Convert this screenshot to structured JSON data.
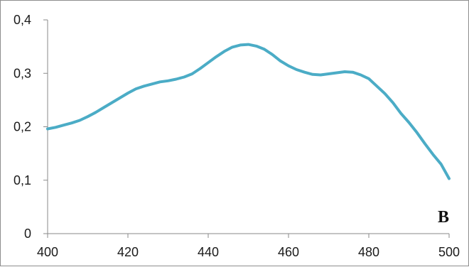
{
  "chart_data": {
    "type": "line",
    "title": "",
    "xlabel": "",
    "ylabel": "",
    "xlim": [
      400,
      500
    ],
    "ylim": [
      0,
      0.4
    ],
    "x_ticks": [
      400,
      420,
      440,
      460,
      480,
      500
    ],
    "x_tick_labels": [
      "400",
      "420",
      "440",
      "460",
      "480",
      "500"
    ],
    "y_ticks": [
      0,
      0.1,
      0.2,
      0.3,
      0.4
    ],
    "y_tick_labels": [
      "0",
      "0,1",
      "0,2",
      "0,3",
      "0,4"
    ],
    "grid": false,
    "legend": "none",
    "annotations": [
      {
        "text": "B",
        "position": "bottom-right"
      }
    ],
    "series": [
      {
        "color": "#4bacc6",
        "x": [
          400,
          402,
          404,
          406,
          408,
          410,
          412,
          414,
          416,
          418,
          420,
          422,
          424,
          426,
          428,
          430,
          432,
          434,
          436,
          438,
          440,
          442,
          444,
          446,
          448,
          450,
          452,
          454,
          456,
          458,
          460,
          462,
          464,
          466,
          468,
          470,
          472,
          474,
          476,
          478,
          480,
          482,
          484,
          486,
          488,
          490,
          492,
          494,
          496,
          498,
          500
        ],
        "y": [
          0.196,
          0.199,
          0.203,
          0.207,
          0.212,
          0.219,
          0.227,
          0.236,
          0.245,
          0.254,
          0.263,
          0.271,
          0.276,
          0.28,
          0.284,
          0.286,
          0.289,
          0.293,
          0.299,
          0.309,
          0.32,
          0.331,
          0.341,
          0.349,
          0.353,
          0.354,
          0.351,
          0.345,
          0.335,
          0.323,
          0.314,
          0.307,
          0.302,
          0.298,
          0.297,
          0.299,
          0.301,
          0.303,
          0.302,
          0.297,
          0.29,
          0.276,
          0.262,
          0.245,
          0.225,
          0.208,
          0.189,
          0.168,
          0.148,
          0.13,
          0.103
        ]
      }
    ]
  }
}
